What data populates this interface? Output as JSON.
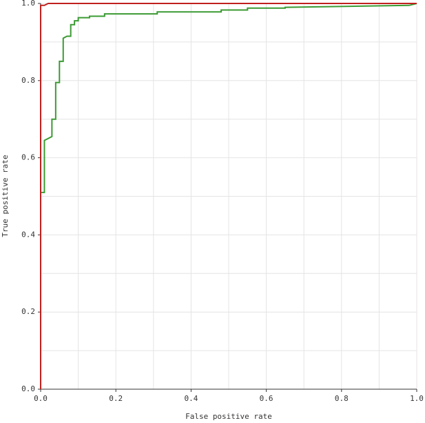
{
  "chart_data": {
    "type": "line",
    "xlabel": "False positive rate",
    "ylabel": "True positive rate",
    "xlim": [
      0,
      1
    ],
    "ylim": [
      0,
      1
    ],
    "xticks": [
      {
        "value": 0,
        "label": "0.0"
      },
      0.2,
      0.4,
      0.6,
      0.8,
      {
        "value": 1,
        "label": "1.0"
      }
    ],
    "yticks": [
      {
        "value": 0,
        "label": "0.0"
      },
      0.2,
      0.4,
      0.6,
      0.8,
      {
        "value": 1,
        "label": "1.0"
      }
    ],
    "minor_grid": [
      0.1,
      0.3,
      0.5,
      0.7,
      0.9
    ],
    "grid": true,
    "series": [
      {
        "color": "#3a9a32",
        "x": [
          0,
          0,
          0.01,
          0.01,
          0.03,
          0.03,
          0.04,
          0.04,
          0.05,
          0.05,
          0.06,
          0.06,
          0.07,
          0.08,
          0.08,
          0.09,
          0.09,
          0.1,
          0.1,
          0.13,
          0.13,
          0.17,
          0.17,
          0.31,
          0.31,
          0.48,
          0.48,
          0.55,
          0.55,
          0.65,
          0.65,
          0.98,
          1
        ],
        "values": [
          0,
          0.51,
          0.51,
          0.645,
          0.655,
          0.7,
          0.7,
          0.795,
          0.795,
          0.85,
          0.85,
          0.91,
          0.915,
          0.915,
          0.945,
          0.945,
          0.955,
          0.955,
          0.963,
          0.963,
          0.967,
          0.967,
          0.973,
          0.973,
          0.978,
          0.978,
          0.983,
          0.983,
          0.988,
          0.988,
          0.99,
          0.995,
          1
        ]
      },
      {
        "color": "#c0201e",
        "x": [
          0,
          0,
          0.01,
          0.02,
          1
        ],
        "values": [
          0,
          0.995,
          0.995,
          1,
          1
        ]
      }
    ]
  }
}
